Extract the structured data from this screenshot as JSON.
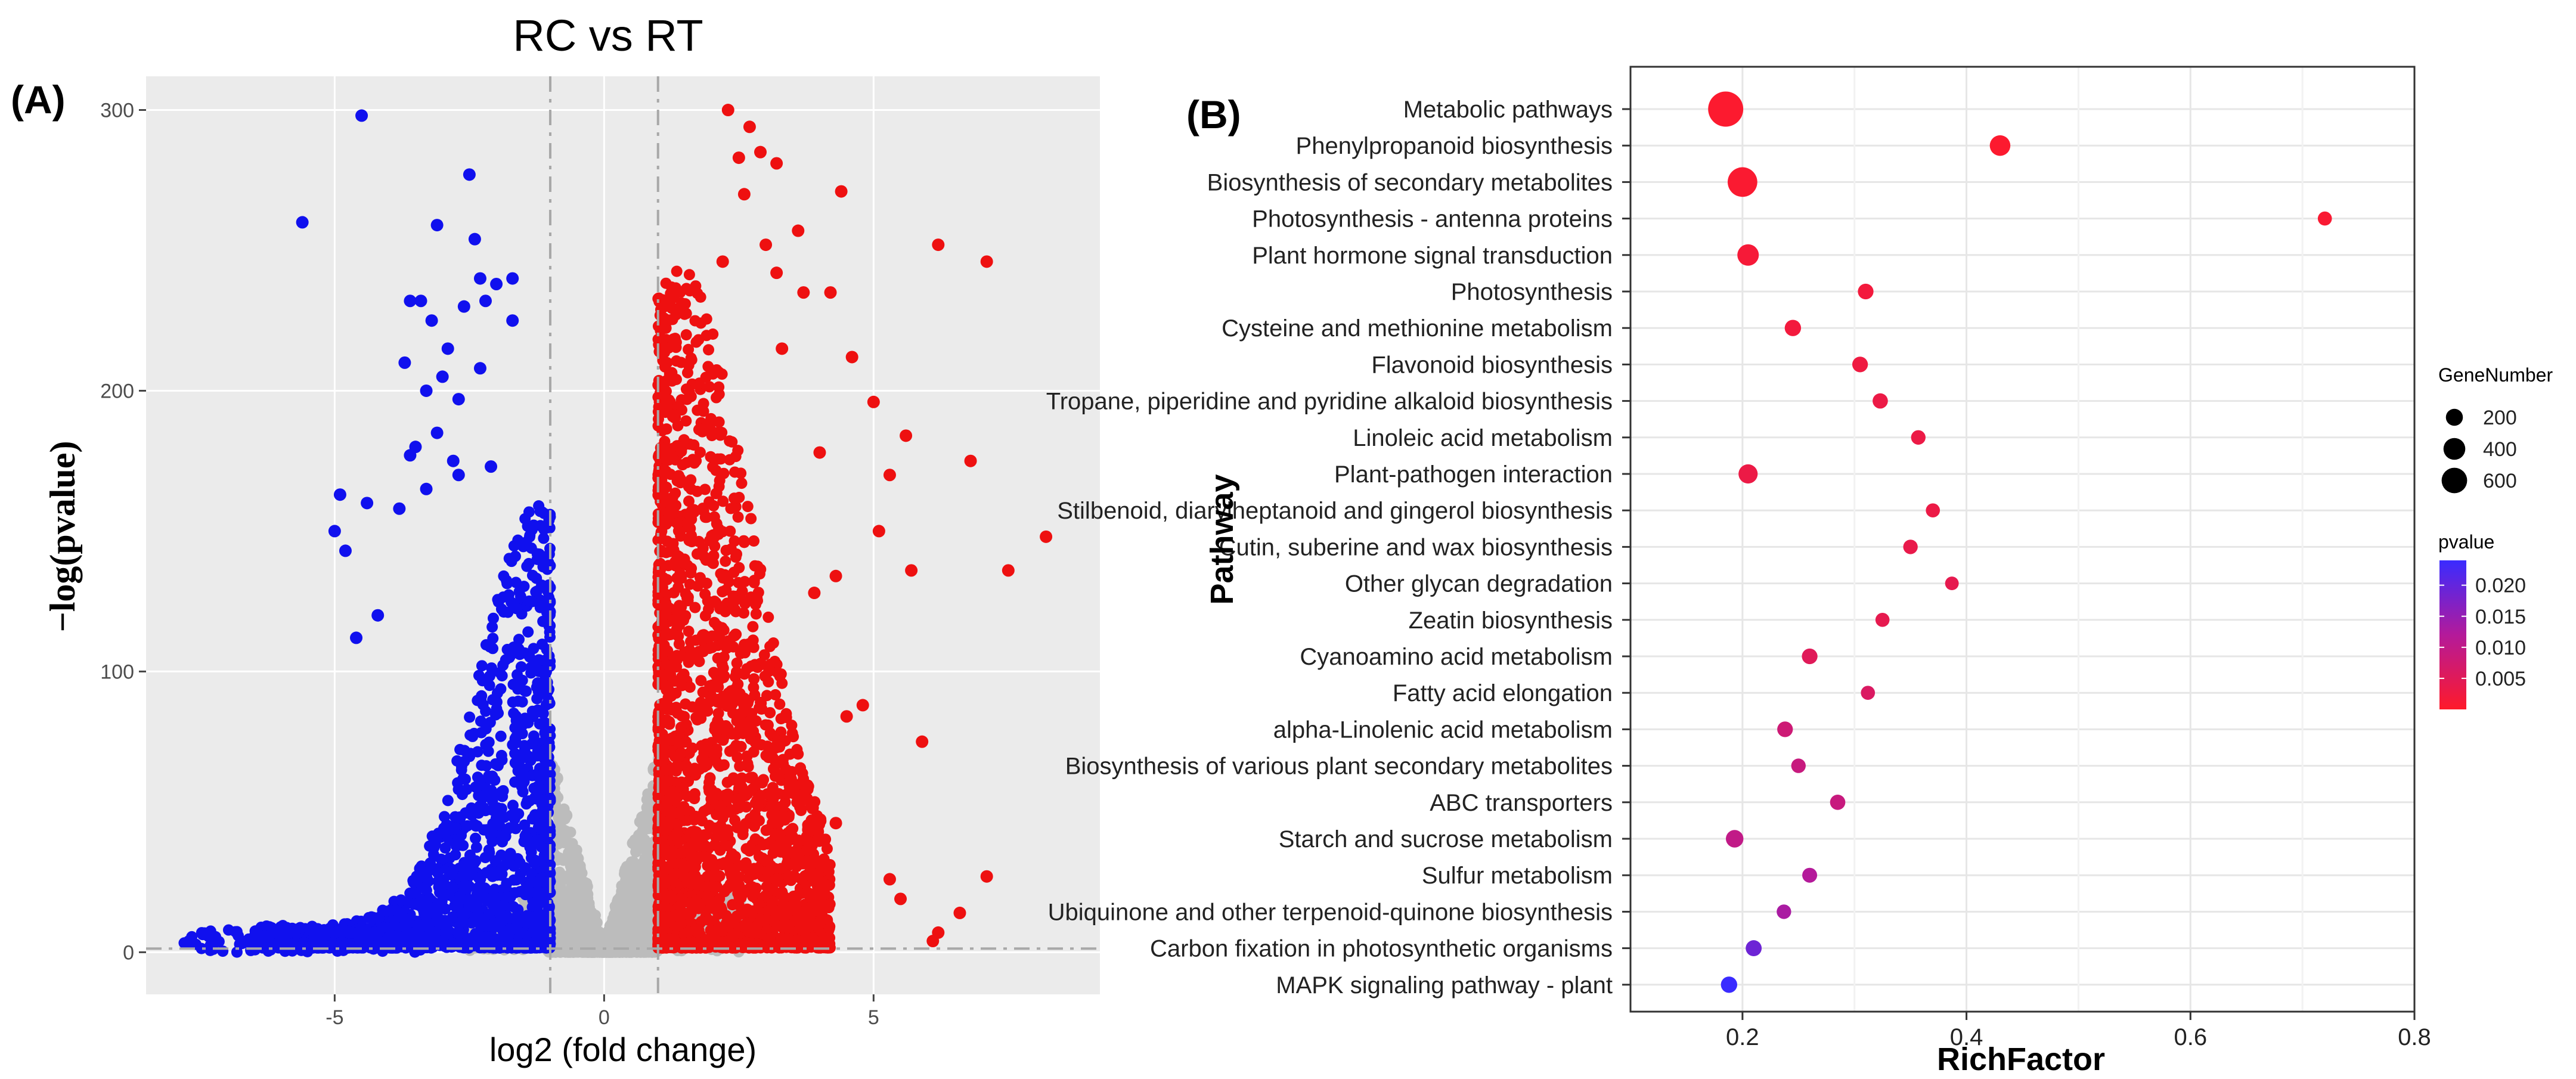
{
  "chart_data": [
    {
      "type": "scatter",
      "panel_label": "(A)",
      "title": "RC vs RT",
      "xlabel": "log2 (fold change)",
      "ylabel": "−log(pvalue)",
      "xlim": [
        -8.5,
        9.2
      ],
      "ylim": [
        -15,
        312
      ],
      "xticks": [
        -5,
        0,
        5
      ],
      "yticks": [
        0,
        100,
        200,
        300
      ],
      "thresholds": {
        "fold_change_lines": [
          -1,
          1
        ],
        "pvalue_line": 1.3
      },
      "colors": {
        "down": "#1010ee",
        "up": "#ee1010",
        "ns": "#bcbcbc",
        "panel_bg": "#ebebeb"
      },
      "series": [
        {
          "name": "down",
          "color": "#1010ee",
          "points": [
            [
              -4.5,
              298
            ],
            [
              -2.5,
              277
            ],
            [
              -3.1,
              259
            ],
            [
              -5.6,
              260
            ],
            [
              -2.4,
              254
            ],
            [
              -2.3,
              240
            ],
            [
              -2.0,
              238
            ],
            [
              -1.7,
              240
            ],
            [
              -1.7,
              225
            ],
            [
              -3.6,
              232
            ],
            [
              -3.4,
              232
            ],
            [
              -3.2,
              225
            ],
            [
              -2.2,
              232
            ],
            [
              -2.6,
              230
            ],
            [
              -3.7,
              210
            ],
            [
              -2.9,
              215
            ],
            [
              -2.3,
              208
            ],
            [
              -3.3,
              200
            ],
            [
              -3.0,
              205
            ],
            [
              -2.7,
              197
            ],
            [
              -3.1,
              185
            ],
            [
              -3.5,
              180
            ],
            [
              -3.6,
              177
            ],
            [
              -2.8,
              175
            ],
            [
              -2.1,
              173
            ],
            [
              -4.9,
              163
            ],
            [
              -2.7,
              170
            ],
            [
              -3.3,
              165
            ],
            [
              -4.4,
              160
            ],
            [
              -3.8,
              158
            ],
            [
              -5.0,
              150
            ],
            [
              -4.8,
              143
            ],
            [
              -4.2,
              120
            ],
            [
              -4.6,
              112
            ]
          ]
        },
        {
          "name": "up",
          "color": "#ee1010",
          "points": [
            [
              2.3,
              300
            ],
            [
              2.7,
              294
            ],
            [
              2.9,
              285
            ],
            [
              3.2,
              281
            ],
            [
              2.5,
              283
            ],
            [
              2.6,
              270
            ],
            [
              4.4,
              271
            ],
            [
              3.6,
              257
            ],
            [
              3.0,
              252
            ],
            [
              6.2,
              252
            ],
            [
              7.1,
              246
            ],
            [
              2.2,
              246
            ],
            [
              3.2,
              242
            ],
            [
              4.2,
              235
            ],
            [
              3.7,
              235
            ],
            [
              4.6,
              212
            ],
            [
              3.3,
              215
            ],
            [
              5.0,
              196
            ],
            [
              5.6,
              184
            ],
            [
              6.8,
              175
            ],
            [
              5.3,
              170
            ],
            [
              4.0,
              178
            ],
            [
              8.2,
              148
            ],
            [
              5.1,
              150
            ],
            [
              7.5,
              136
            ],
            [
              5.7,
              136
            ],
            [
              4.3,
              134
            ],
            [
              3.9,
              128
            ],
            [
              4.5,
              84
            ],
            [
              4.8,
              88
            ],
            [
              5.9,
              75
            ],
            [
              4.3,
              46
            ],
            [
              7.1,
              27
            ],
            [
              5.3,
              26
            ],
            [
              5.5,
              19
            ],
            [
              6.6,
              14
            ],
            [
              6.2,
              7
            ],
            [
              6.1,
              4
            ]
          ]
        }
      ]
    },
    {
      "type": "scatter",
      "panel_label": "(B)",
      "xlabel": "RichFactor",
      "ylabel": "Pathway",
      "xlim": [
        0.1,
        0.8
      ],
      "xticks": [
        0.2,
        0.4,
        0.6,
        0.8
      ],
      "size_legend_title": "GeneNumber",
      "size_legend": [
        200,
        400,
        600
      ],
      "color_legend_title": "pvalue",
      "color_legend_ticks": [
        "0.020",
        "0.015",
        "0.010",
        "0.005"
      ],
      "color_range": [
        0.0,
        0.024
      ],
      "pathways": [
        {
          "name": "Metabolic pathways",
          "rich": 0.185,
          "genes": 650,
          "pvalue": 0.0005
        },
        {
          "name": "Phenylpropanoid biosynthesis",
          "rich": 0.43,
          "genes": 150,
          "pvalue": 0.0005
        },
        {
          "name": "Biosynthesis of secondary metabolites",
          "rich": 0.2,
          "genes": 420,
          "pvalue": 0.0008
        },
        {
          "name": "Photosynthesis - antenna proteins",
          "rich": 0.72,
          "genes": 40,
          "pvalue": 0.001
        },
        {
          "name": "Plant hormone signal transduction",
          "rich": 0.205,
          "genes": 170,
          "pvalue": 0.0015
        },
        {
          "name": "Photosynthesis",
          "rich": 0.31,
          "genes": 60,
          "pvalue": 0.002
        },
        {
          "name": "Cysteine and methionine metabolism",
          "rich": 0.245,
          "genes": 70,
          "pvalue": 0.002
        },
        {
          "name": "Flavonoid biosynthesis",
          "rich": 0.305,
          "genes": 60,
          "pvalue": 0.0025
        },
        {
          "name": "Tropane, piperidine and pyridine alkaloid biosynthesis",
          "rich": 0.323,
          "genes": 55,
          "pvalue": 0.003
        },
        {
          "name": "Linoleic acid metabolism",
          "rich": 0.357,
          "genes": 45,
          "pvalue": 0.003
        },
        {
          "name": "Plant-pathogen interaction",
          "rich": 0.205,
          "genes": 120,
          "pvalue": 0.003
        },
        {
          "name": "Stilbenoid, diarylheptanoid and gingerol biosynthesis",
          "rich": 0.37,
          "genes": 40,
          "pvalue": 0.003
        },
        {
          "name": "Cutin, suberine and wax biosynthesis",
          "rich": 0.35,
          "genes": 45,
          "pvalue": 0.0035
        },
        {
          "name": "Other glycan degradation",
          "rich": 0.387,
          "genes": 35,
          "pvalue": 0.004
        },
        {
          "name": "Zeatin biosynthesis",
          "rich": 0.325,
          "genes": 40,
          "pvalue": 0.004
        },
        {
          "name": "Cyanoamino acid metabolism",
          "rich": 0.26,
          "genes": 60,
          "pvalue": 0.005
        },
        {
          "name": "Fatty acid elongation",
          "rich": 0.312,
          "genes": 40,
          "pvalue": 0.006
        },
        {
          "name": "alpha-Linolenic acid metabolism",
          "rich": 0.238,
          "genes": 60,
          "pvalue": 0.008
        },
        {
          "name": "Biosynthesis of various plant secondary metabolites",
          "rich": 0.25,
          "genes": 45,
          "pvalue": 0.009
        },
        {
          "name": "ABC transporters",
          "rich": 0.285,
          "genes": 55,
          "pvalue": 0.009
        },
        {
          "name": "Starch and sucrose metabolism",
          "rich": 0.193,
          "genes": 90,
          "pvalue": 0.01
        },
        {
          "name": "Sulfur metabolism",
          "rich": 0.26,
          "genes": 50,
          "pvalue": 0.012
        },
        {
          "name": "Ubiquinone and other terpenoid-quinone biosynthesis",
          "rich": 0.237,
          "genes": 45,
          "pvalue": 0.013
        },
        {
          "name": "Carbon fixation in photosynthetic organisms",
          "rich": 0.21,
          "genes": 65,
          "pvalue": 0.019
        },
        {
          "name": "MAPK signaling pathway - plant",
          "rich": 0.188,
          "genes": 70,
          "pvalue": 0.024
        }
      ]
    }
  ]
}
